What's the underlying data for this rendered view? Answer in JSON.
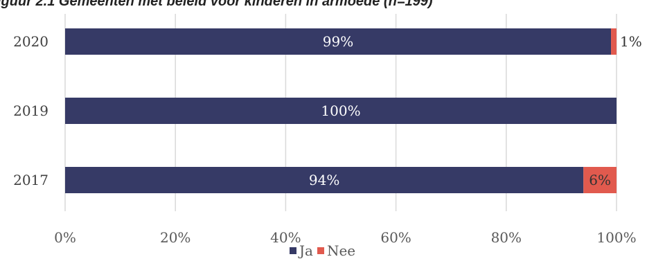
{
  "title": "iguur 2.1 Gemeenten met beleid voor kinderen in armoede (n=199)",
  "chart_data": {
    "type": "bar",
    "orientation": "horizontal",
    "stacked": true,
    "categories": [
      "2020",
      "2019",
      "2017"
    ],
    "series": [
      {
        "name": "Ja",
        "color": "#363a66",
        "values": [
          99,
          100,
          94
        ],
        "labels": [
          "99%",
          "100%",
          "94%"
        ]
      },
      {
        "name": "Nee",
        "color": "#e15a4e",
        "values": [
          1,
          0,
          6
        ],
        "labels": [
          "1%",
          "",
          "6%"
        ]
      }
    ],
    "x_ticks": [
      "0%",
      "20%",
      "40%",
      "60%",
      "80%",
      "100%"
    ],
    "xlim": [
      0,
      100
    ],
    "grid": "vertical",
    "legend": "bottom"
  }
}
